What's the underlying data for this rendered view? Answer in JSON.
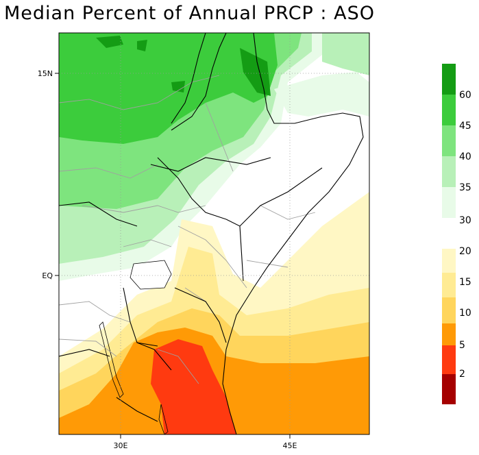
{
  "title": "Median Percent of Annual PRCP  :  ASO",
  "map": {
    "lat_labels": [
      "15N",
      "EQ"
    ],
    "lon_labels": [
      "30E",
      "45E"
    ]
  },
  "colorbar": {
    "upper": {
      "ticks": [
        "30",
        "35",
        "40",
        "45",
        "60"
      ],
      "colors": [
        "#e8fbe8",
        "#b8f0b8",
        "#7ee47e",
        "#3ccc3c",
        "#149c14"
      ]
    },
    "lower": {
      "ticks": [
        "20",
        "15",
        "10",
        "5",
        "2"
      ],
      "colors": [
        "#fff7c4",
        "#ffeb93",
        "#ffd55c",
        "#ff9a06",
        "#ff3a10",
        "#a50000"
      ]
    }
  }
}
